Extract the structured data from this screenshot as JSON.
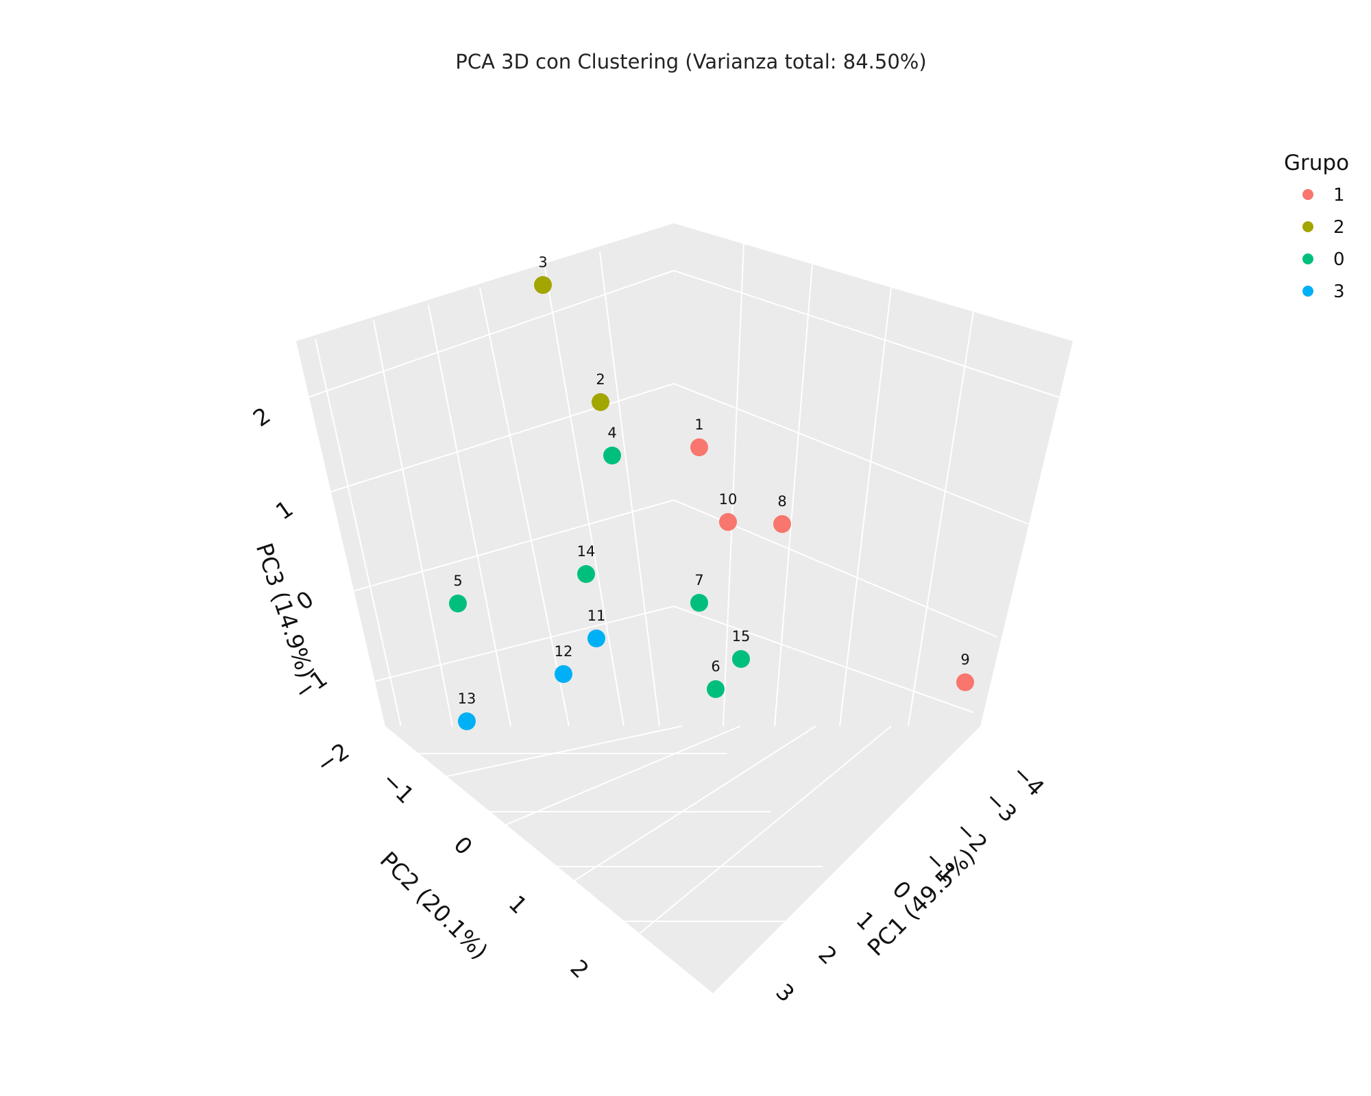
{
  "chart_data": {
    "type": "scatter3d",
    "title": "PCA 3D con Clustering (Varianza total: 84.50%)",
    "axes": {
      "x": {
        "label": "PC1 (49.5%)",
        "ticks": [
          "−4",
          "−3",
          "−2",
          "−1",
          "0",
          "1",
          "2",
          "3"
        ]
      },
      "y": {
        "label": "PC2 (20.1%)",
        "ticks": [
          "−1",
          "0",
          "1",
          "2"
        ]
      },
      "z": {
        "label": "PC3 (14.9%)",
        "ticks": [
          "−2",
          "−1",
          "0",
          "1",
          "2"
        ]
      }
    },
    "legend": {
      "title": "Grupo",
      "position": "top-right",
      "entries": [
        {
          "name": "1",
          "color": "#F8766D"
        },
        {
          "name": "2",
          "color": "#A3A500"
        },
        {
          "name": "0",
          "color": "#00BF7D"
        },
        {
          "name": "3",
          "color": "#00B0F6"
        }
      ]
    },
    "points": [
      {
        "label": "1",
        "group": "1"
      },
      {
        "label": "10",
        "group": "1"
      },
      {
        "label": "8",
        "group": "1"
      },
      {
        "label": "9",
        "group": "1"
      },
      {
        "label": "3",
        "group": "2"
      },
      {
        "label": "2",
        "group": "2"
      },
      {
        "label": "4",
        "group": "0"
      },
      {
        "label": "14",
        "group": "0"
      },
      {
        "label": "5",
        "group": "0"
      },
      {
        "label": "7",
        "group": "0"
      },
      {
        "label": "15",
        "group": "0"
      },
      {
        "label": "6",
        "group": "0"
      },
      {
        "label": "11",
        "group": "3"
      },
      {
        "label": "12",
        "group": "3"
      },
      {
        "label": "13",
        "group": "3"
      }
    ]
  }
}
